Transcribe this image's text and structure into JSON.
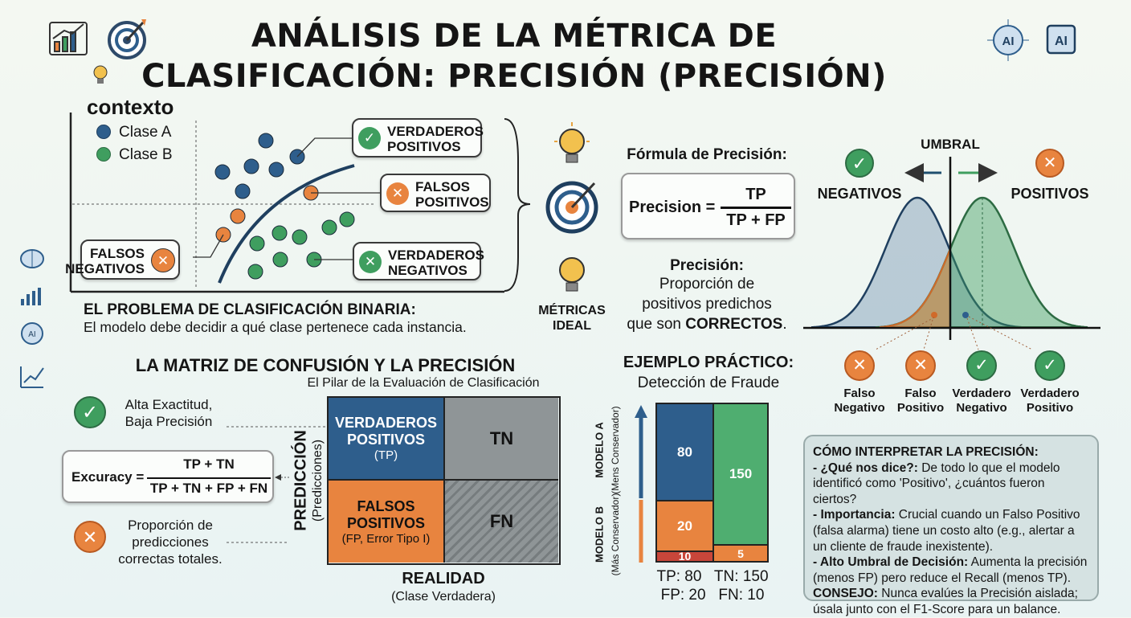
{
  "title": {
    "line1": "ANÁLISIS DE LA MÉTRICA DE",
    "line2": "CLASIFICACIÓN: PRECISIÓN (PRECISIÓN)"
  },
  "icons": {
    "top_left": [
      "bar-chart-icon",
      "target-icon",
      "lightbulb-icon"
    ],
    "top_right": [
      "ai-brain-icon",
      "ai-chip-icon"
    ],
    "sidebar": [
      "brain-icon",
      "bar-chart-icon",
      "ai-head-icon",
      "line-chart-icon"
    ]
  },
  "colors": {
    "blue": "#2e5e8c",
    "orange": "#e8843f",
    "green": "#3f9e5f",
    "gray": "#8f9597",
    "navy": "#1f3f5f"
  },
  "context": {
    "heading": "contexto",
    "legend": [
      {
        "label": "Clase A",
        "color": "#2e5e8c"
      },
      {
        "label": "Clase B",
        "color": "#3f9e5f"
      }
    ],
    "callouts": {
      "tp": [
        "VERDADEROS",
        "POSITIVOS"
      ],
      "fp": [
        "FALSOS",
        "POSITIVOS"
      ],
      "tn": [
        "VERDADEROS",
        "NEGATIVOS"
      ],
      "fn": [
        "FALSOS",
        "NEGATIVOS"
      ]
    },
    "problem_title": "EL PROBLEMA DE CLASIFICACIÓN BINARIA:",
    "problem_text": "El modelo debe decidir a qué clase pertenece cada instancia."
  },
  "metrics": {
    "label1": "MÉTRICAS",
    "label2": "IDEAL"
  },
  "formula": {
    "heading": "Fórmula de Precisión:",
    "lhs": "Precision =",
    "num": "TP",
    "den": "TP + FP",
    "def_title": "Precisión:",
    "def_lines": [
      "Proporción de",
      "positivos predichos"
    ],
    "def_last": "que son ",
    "def_bold": "CORRECTOS",
    "def_end": "."
  },
  "threshold": {
    "label": "UMBRAL",
    "negatives": "NEGATIVOS",
    "positives": "POSITIVOS",
    "outcomes": [
      {
        "l1": "Falso",
        "l2": "Negativo",
        "kind": "x"
      },
      {
        "l1": "Falso",
        "l2": "Positivo",
        "kind": "x"
      },
      {
        "l1": "Verdadero",
        "l2": "Negativo",
        "kind": "check"
      },
      {
        "l1": "Verdadero",
        "l2": "Positivo",
        "kind": "check"
      }
    ]
  },
  "matrix": {
    "title": "LA MATRIZ DE CONFUSIÓN Y LA PRECISIÓN",
    "subtitle": "El Pilar de la Evaluación de Clasificación",
    "tp": [
      "VERDADEROS",
      "POSITIVOS",
      "(TP)"
    ],
    "tn": "TN",
    "fp": [
      "FALSOS",
      "POSITIVOS",
      "(FP, Error Tipo I)"
    ],
    "fn": "FN",
    "y_label": "PREDICCIÓN",
    "y_sub": "(Predicciones)",
    "x_label": "REALIDAD",
    "x_sub": "(Clase Verdadera)",
    "note1": [
      "Alta Exactitud,",
      "Baja Precisión"
    ],
    "acc_lhs": "Excuracy =",
    "acc_num": "TP + TN",
    "acc_den": "TP + TN + FP + FN",
    "note2": [
      "Proporción de",
      "predicciones",
      "correctas totales."
    ]
  },
  "example": {
    "title": "EJEMPLO PRÁCTICO:",
    "subtitle": "Detección de Fraude",
    "model_a": "MODELO A",
    "model_a_sub": "(Mens Conservador)",
    "model_b": "MODELO B",
    "model_b_sub": "(Más Conservador)",
    "bars": {
      "tp": "80",
      "fp": "20",
      "fn": "10",
      "tn": "150",
      "right_small": "5"
    },
    "summary1": "TP: 80   TN: 150",
    "summary2": "FP: 20   FN: 10"
  },
  "interpret": {
    "title": "CÓMO INTERPRETAR LA PRECISIÓN:",
    "items": [
      {
        "k": "- ¿Qué nos dice?:",
        "v": " De todo lo que el modelo identificó como 'Positivo', ¿cuántos fueron ciertos?"
      },
      {
        "k": "- Importancia:",
        "v": " Crucial cuando un Falso Positivo (falsa alarma) tiene un costo alto (e.g., alertar a un cliente de fraude inexistente)."
      },
      {
        "k": "- Alto Umbral de Decisión:",
        "v": " Aumenta la precisión (menos FP) pero reduce el Recall (menos TP)."
      },
      {
        "k": "CONSEJO:",
        "v": " Nunca evalúes la Precisión aislada; úsala junto con el F1-Score para un balance."
      }
    ]
  }
}
